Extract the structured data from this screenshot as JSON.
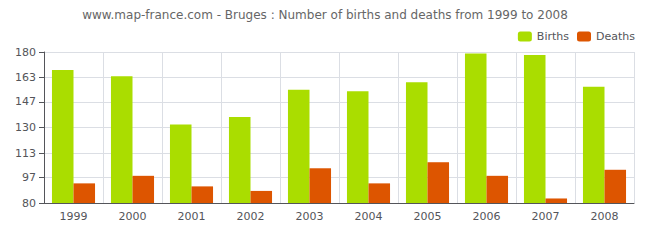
{
  "chart_data": {
    "type": "bar",
    "title": "www.map-france.com - Bruges : Number of births and deaths from 1999 to 2008",
    "categories": [
      "1999",
      "2000",
      "2001",
      "2002",
      "2003",
      "2004",
      "2005",
      "2006",
      "2007",
      "2008"
    ],
    "series": [
      {
        "name": "Births",
        "color": "#aadd00",
        "values": [
          168,
          164,
          132,
          137,
          155,
          154,
          160,
          179,
          178,
          157
        ]
      },
      {
        "name": "Deaths",
        "color": "#dd5500",
        "values": [
          93,
          98,
          91,
          88,
          103,
          93,
          107,
          98,
          83,
          102
        ]
      }
    ],
    "ylim": [
      80,
      180
    ],
    "yticks": [
      80,
      97,
      113,
      130,
      147,
      163,
      180
    ],
    "grid": true,
    "legend": "upper right"
  }
}
